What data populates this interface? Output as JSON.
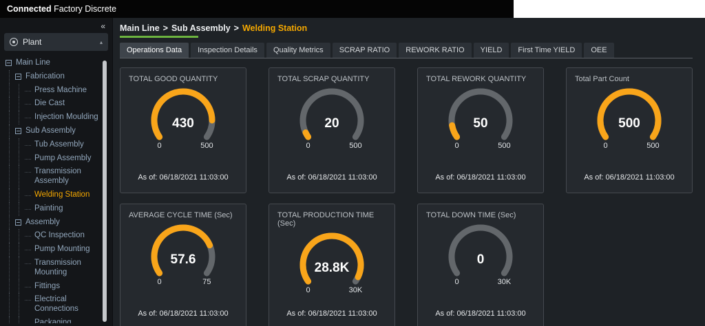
{
  "app": {
    "title_bold": "Connected",
    "title_rest": "Factory Discrete"
  },
  "colors": {
    "accent_orange": "#F5A800",
    "accent_green": "#6CB33F",
    "gauge_fill": "#F9A51A",
    "gauge_track": "#63676B"
  },
  "sidebar": {
    "collapse_glyph": "«",
    "panel": {
      "label": "Plant",
      "caret_glyph": "▴"
    },
    "tree": [
      {
        "label": "Main Line",
        "level": 0,
        "kind": "branch"
      },
      {
        "label": "Fabrication",
        "level": 1,
        "kind": "branch"
      },
      {
        "label": "Press Machine",
        "level": 2,
        "kind": "leaf"
      },
      {
        "label": "Die Cast",
        "level": 2,
        "kind": "leaf"
      },
      {
        "label": "Injection Moulding",
        "level": 2,
        "kind": "leaf"
      },
      {
        "label": "Sub Assembly",
        "level": 1,
        "kind": "branch"
      },
      {
        "label": "Tub Assembly",
        "level": 2,
        "kind": "leaf"
      },
      {
        "label": "Pump Assembly",
        "level": 2,
        "kind": "leaf"
      },
      {
        "label": "Transmission Assembly",
        "level": 2,
        "kind": "leaf"
      },
      {
        "label": "Welding Station",
        "level": 2,
        "kind": "leaf",
        "selected": true
      },
      {
        "label": "Painting",
        "level": 2,
        "kind": "leaf"
      },
      {
        "label": "Assembly",
        "level": 1,
        "kind": "branch"
      },
      {
        "label": "QC Inspection",
        "level": 2,
        "kind": "leaf"
      },
      {
        "label": "Pump Mounting",
        "level": 2,
        "kind": "leaf"
      },
      {
        "label": "Transmission Mounting",
        "level": 2,
        "kind": "leaf"
      },
      {
        "label": "Fittings",
        "level": 2,
        "kind": "leaf"
      },
      {
        "label": "Electrical Connections",
        "level": 2,
        "kind": "leaf"
      },
      {
        "label": "Packaging",
        "level": 2,
        "kind": "leaf"
      }
    ]
  },
  "breadcrumb": {
    "items": [
      "Main Line",
      "Sub Assembly",
      "Welding Station"
    ],
    "separator": ">"
  },
  "tabs": [
    {
      "label": "Operations Data",
      "active": true
    },
    {
      "label": "Inspection Details"
    },
    {
      "label": "Quality Metrics"
    },
    {
      "label": "SCRAP RATIO"
    },
    {
      "label": "REWORK RATIO"
    },
    {
      "label": "YIELD"
    },
    {
      "label": "First Time YIELD"
    },
    {
      "label": "OEE"
    }
  ],
  "cards": [
    {
      "title": "TOTAL GOOD QUANTITY",
      "value": "430",
      "min": "0",
      "max": "500",
      "ratio": 0.86,
      "asof": "As of: 06/18/2021 11:03:00"
    },
    {
      "title": "TOTAL SCRAP QUANTITY",
      "value": "20",
      "min": "0",
      "max": "500",
      "ratio": 0.04,
      "asof": "As of: 06/18/2021 11:03:00"
    },
    {
      "title": "TOTAL REWORK QUANTITY",
      "value": "50",
      "min": "0",
      "max": "500",
      "ratio": 0.1,
      "asof": "As of: 06/18/2021 11:03:00"
    },
    {
      "title": "Total Part Count",
      "value": "500",
      "min": "0",
      "max": "500",
      "ratio": 1,
      "asof": "As of: 06/18/2021 11:03:00"
    },
    {
      "title": "AVERAGE CYCLE TIME (Sec)",
      "value": "57.6",
      "min": "0",
      "max": "75",
      "ratio": 0.768,
      "asof": "As of: 06/18/2021 11:03:00"
    },
    {
      "title": "TOTAL PRODUCTION TIME (Sec)",
      "value": "28.8K",
      "min": "0",
      "max": "30K",
      "ratio": 0.96,
      "asof": "As of: 06/18/2021 11:03:00"
    },
    {
      "title": "TOTAL DOWN TIME (Sec)",
      "value": "0",
      "min": "0",
      "max": "30K",
      "ratio": 0,
      "asof": "As of: 06/18/2021 11:03:00"
    }
  ]
}
